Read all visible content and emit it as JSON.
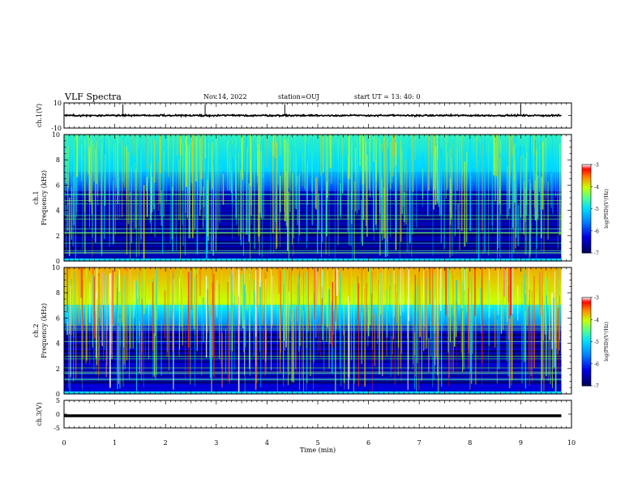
{
  "header": {
    "title": "VLF Spectra",
    "date": "Nov.14, 2022",
    "station": "station=OUJ",
    "start_ut": "start  UT  =   13: 40: 0"
  },
  "chart_data": [
    {
      "type": "line",
      "ylabel": "ch.1(V)",
      "ylim": [
        -10,
        10
      ],
      "ytick_labels": [
        "10",
        "-10"
      ],
      "baseline": 0,
      "spikes_min": [
        1.16,
        2.78,
        4.35,
        9.0
      ]
    },
    {
      "type": "heatmap",
      "ylabel": "ch.1\nFrequency (kHz)",
      "ylim": [
        0,
        10
      ],
      "xlim": [
        0,
        9.8
      ],
      "ytick_labels": [
        "0",
        "2",
        "4",
        "6",
        "8",
        "10"
      ],
      "colorbar": {
        "label": "log(PSD)(V²/Hz)",
        "range": [
          -7,
          -3
        ],
        "tick_labels": [
          "-3",
          "-4",
          "-5",
          "-6",
          "-7"
        ]
      }
    },
    {
      "type": "heatmap",
      "ylabel": "ch.2\nFrequency (kHz)",
      "ylim": [
        0,
        10
      ],
      "xlim": [
        0,
        9.8
      ],
      "ytick_labels": [
        "0",
        "2",
        "4",
        "6",
        "8",
        "10"
      ],
      "colorbar": {
        "label": "log(PSD)(V²/Hz)",
        "range": [
          -7,
          -3
        ],
        "tick_labels": [
          "-3",
          "-4",
          "-5",
          "-6",
          "-7"
        ]
      }
    },
    {
      "type": "line",
      "ylabel": "ch.3(V)",
      "ylim": [
        -5,
        5
      ],
      "ytick_labels": [
        "5",
        "0",
        "-5"
      ],
      "value": -0.6
    }
  ],
  "x_axis": {
    "label": "Time (min)",
    "range": [
      0,
      10
    ],
    "tick_labels": [
      "0",
      "1",
      "2",
      "3",
      "4",
      "5",
      "6",
      "7",
      "8",
      "9",
      "10"
    ]
  },
  "colors": {
    "colormap": [
      "#000080",
      "#0000ff",
      "#0080ff",
      "#00ffff",
      "#80ff80",
      "#ffff00",
      "#ff8000",
      "#ff0000",
      "#ffffff"
    ]
  }
}
